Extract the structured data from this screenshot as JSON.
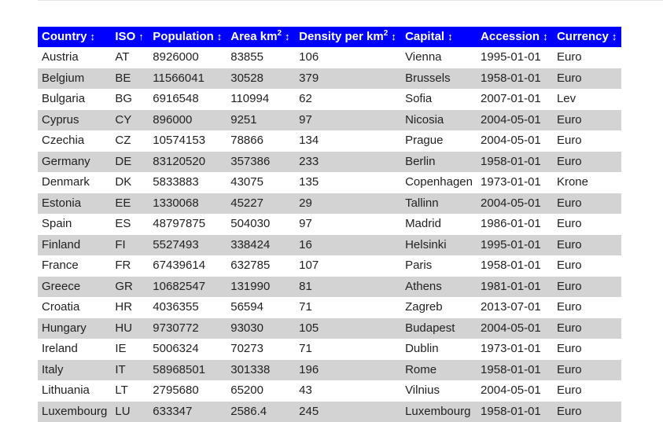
{
  "table": {
    "headers": [
      {
        "label": "Country",
        "sup": "",
        "arrow": "↕"
      },
      {
        "label": "ISO",
        "sup": "",
        "arrow": "↑"
      },
      {
        "label": "Population",
        "sup": "",
        "arrow": "↕"
      },
      {
        "label": "Area km",
        "sup": "2",
        "arrow": "↕"
      },
      {
        "label": "Density per km",
        "sup": "2",
        "arrow": "↕"
      },
      {
        "label": "Capital",
        "sup": "",
        "arrow": "↕"
      },
      {
        "label": "Accession",
        "sup": "",
        "arrow": "↕"
      },
      {
        "label": "Currency",
        "sup": "",
        "arrow": "↕"
      }
    ],
    "rows": [
      [
        "Austria",
        "AT",
        "8926000",
        "83855",
        "106",
        "Vienna",
        "1995-01-01",
        "Euro"
      ],
      [
        "Belgium",
        "BE",
        "11566041",
        "30528",
        "379",
        "Brussels",
        "1958-01-01",
        "Euro"
      ],
      [
        "Bulgaria",
        "BG",
        "6916548",
        "110994",
        "62",
        "Sofia",
        "2007-01-01",
        "Lev"
      ],
      [
        "Cyprus",
        "CY",
        "896000",
        "9251",
        "97",
        "Nicosia",
        "2004-05-01",
        "Euro"
      ],
      [
        "Czechia",
        "CZ",
        "10574153",
        "78866",
        "134",
        "Prague",
        "2004-05-01",
        "Euro"
      ],
      [
        "Germany",
        "DE",
        "83120520",
        "357386",
        "233",
        "Berlin",
        "1958-01-01",
        "Euro"
      ],
      [
        "Denmark",
        "DK",
        "5833883",
        "43075",
        "135",
        "Copenhagen",
        "1973-01-01",
        "Krone"
      ],
      [
        "Estonia",
        "EE",
        "1330068",
        "45227",
        "29",
        "Tallinn",
        "2004-05-01",
        "Euro"
      ],
      [
        "Spain",
        "ES",
        "48797875",
        "504030",
        "97",
        "Madrid",
        "1986-01-01",
        "Euro"
      ],
      [
        "Finland",
        "FI",
        "5527493",
        "338424",
        "16",
        "Helsinki",
        "1995-01-01",
        "Euro"
      ],
      [
        "France",
        "FR",
        "67439614",
        "632785",
        "107",
        "Paris",
        "1958-01-01",
        "Euro"
      ],
      [
        "Greece",
        "GR",
        "10682547",
        "131990",
        "81",
        "Athens",
        "1981-01-01",
        "Euro"
      ],
      [
        "Croatia",
        "HR",
        "4036355",
        "56594",
        "71",
        "Zagreb",
        "2013-07-01",
        "Euro"
      ],
      [
        "Hungary",
        "HU",
        "9730772",
        "93030",
        "105",
        "Budapest",
        "2004-05-01",
        "Euro"
      ],
      [
        "Ireland",
        "IE",
        "5006324",
        "70273",
        "71",
        "Dublin",
        "1973-01-01",
        "Euro"
      ],
      [
        "Italy",
        "IT",
        "58968501",
        "301338",
        "196",
        "Rome",
        "1958-01-01",
        "Euro"
      ],
      [
        "Lithuania",
        "LT",
        "2795680",
        "65200",
        "43",
        "Vilnius",
        "2004-05-01",
        "Euro"
      ],
      [
        "Luxembourg",
        "LU",
        "633347",
        "2586.4",
        "245",
        "Luxembourg",
        "1958-01-01",
        "Euro"
      ]
    ]
  }
}
